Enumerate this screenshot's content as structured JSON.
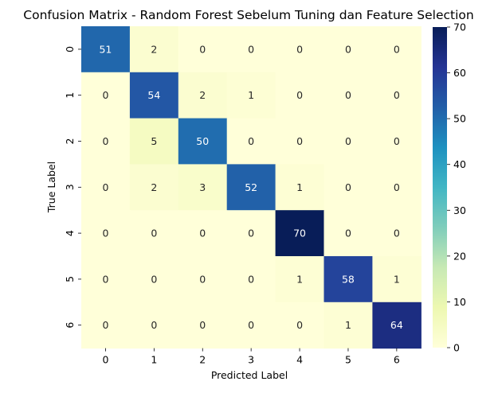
{
  "chart_data": {
    "type": "heatmap",
    "title": "Confusion Matrix - Random Forest Sebelum Tuning dan Feature Selection",
    "xlabel": "Predicted Label",
    "ylabel": "True Label",
    "x_labels": [
      "0",
      "1",
      "2",
      "3",
      "4",
      "5",
      "6"
    ],
    "y_labels": [
      "0",
      "1",
      "2",
      "3",
      "4",
      "5",
      "6"
    ],
    "values": [
      [
        51,
        2,
        0,
        0,
        0,
        0,
        0
      ],
      [
        0,
        54,
        2,
        1,
        0,
        0,
        0
      ],
      [
        0,
        5,
        50,
        0,
        0,
        0,
        0
      ],
      [
        0,
        2,
        3,
        52,
        1,
        0,
        0
      ],
      [
        0,
        0,
        0,
        0,
        70,
        0,
        0
      ],
      [
        0,
        0,
        0,
        0,
        1,
        58,
        1
      ],
      [
        0,
        0,
        0,
        0,
        0,
        1,
        64
      ]
    ],
    "colormap": "YlGnBu",
    "vmin": 0,
    "vmax": 70,
    "colorbar_ticks": [
      0,
      10,
      20,
      30,
      40,
      50,
      60,
      70
    ]
  }
}
